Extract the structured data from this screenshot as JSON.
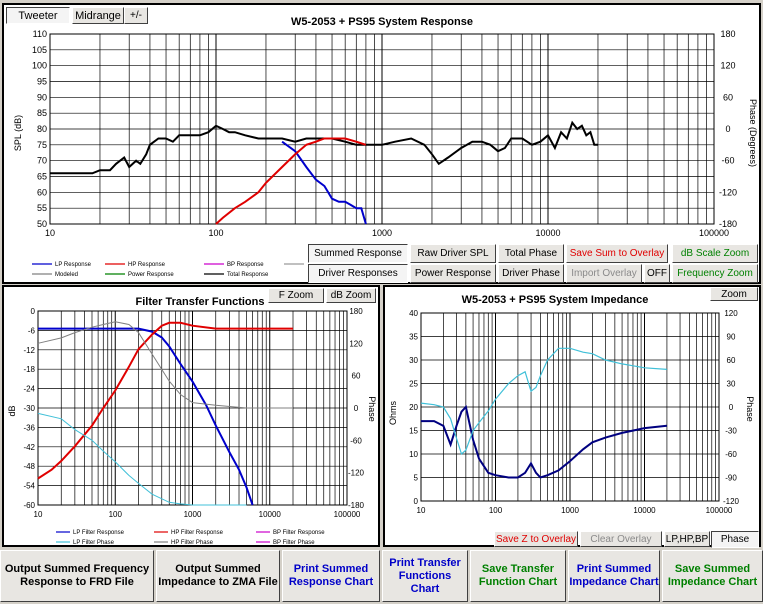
{
  "top_tabs": {
    "tweeter": "Tweeter",
    "midrange": "Midrange",
    "plusminus": "+/-"
  },
  "system_chart": {
    "title": "W5-2053 + PS95    System Response",
    "ylabel": "SPL (dB)",
    "y2label": "Phase (Degrees)",
    "y_ticks": [
      "110",
      "105",
      "100",
      "95",
      "90",
      "85",
      "80",
      "75",
      "70",
      "65",
      "60",
      "55",
      "50"
    ],
    "y2_ticks": [
      "180",
      "120",
      "60",
      "0",
      "-60",
      "-120",
      "-180"
    ],
    "x_ticks": [
      "10",
      "100",
      "1000",
      "10000",
      "100000"
    ],
    "legend": [
      "LP Response",
      "HP Response",
      "BP Response",
      "Modeled",
      "Power Response",
      "Total Response"
    ],
    "colors": {
      "lp": "#0000cc",
      "hp": "#e00000",
      "bp": "#cc00cc",
      "modeled": "#808080",
      "power": "#008000",
      "total": "#000000"
    }
  },
  "chart_buttons": {
    "summed": "Summed Response",
    "raw": "Raw Driver SPL",
    "total_phase": "Total Phase",
    "save_sum": "Save Sum to Overlay",
    "db_scale": "dB Scale Zoom",
    "driver_resp": "Driver Responses",
    "power_resp": "Power Response",
    "driver_phase": "Driver Phase",
    "import_overlay": "Import Overlay",
    "off": "OFF",
    "freq_zoom": "Frequency Zoom"
  },
  "filter_chart": {
    "title": "Filter Transfer Functions",
    "f_zoom": "F Zoom",
    "db_zoom": "dB Zoom",
    "ylabel": "dB",
    "y2label": "Phase",
    "y_ticks": [
      "0",
      "-6",
      "-12",
      "-18",
      "-24",
      "-30",
      "-36",
      "-42",
      "-48",
      "-54",
      "-60"
    ],
    "y2_ticks": [
      "180",
      "120",
      "60",
      "0",
      "-60",
      "-120",
      "-180"
    ],
    "x_ticks": [
      "10",
      "100",
      "1000",
      "10000",
      "100000"
    ],
    "legend": [
      "LP Filter Response",
      "HP Filter Response",
      "BP Filter Response",
      "LP Filter Phase",
      "HP Filter Phase",
      "BP Filter Phase"
    ]
  },
  "impedance_chart": {
    "title": "W5-2053 + PS95     System Impedance",
    "zoom": "Zoom",
    "ylabel": "Ohms",
    "y2label": "Phase",
    "y_ticks": [
      "40",
      "35",
      "30",
      "25",
      "20",
      "15",
      "10",
      "5",
      "0"
    ],
    "y2_ticks": [
      "120",
      "90",
      "60",
      "30",
      "0",
      "-30",
      "-60",
      "-90",
      "-120"
    ],
    "x_ticks": [
      "10",
      "100",
      "1000",
      "10000",
      "100000"
    ],
    "save_z": "Save Z to Overlay",
    "clear_overlay": "Clear Overlay",
    "lphpbp": "LP,HP,BP",
    "phase": "Phase"
  },
  "bottom_buttons": [
    {
      "label": "Output Summed Frequency Response to FRD File",
      "color": "black"
    },
    {
      "label": "Output Summed Impedance to ZMA File",
      "color": "black"
    },
    {
      "label": "Print Summed Response Chart",
      "color": "blue"
    },
    {
      "label": "Print Transfer Functions Chart",
      "color": "blue"
    },
    {
      "label": "Save Transfer Function Chart",
      "color": "green"
    },
    {
      "label": "Print Summed Impedance Chart",
      "color": "blue"
    },
    {
      "label": "Save Summed Impedance Chart",
      "color": "green"
    }
  ],
  "chart_data": [
    {
      "type": "line",
      "title": "W5-2053 + PS95    System Response",
      "xlabel": "",
      "ylabel": "SPL (dB)",
      "y2label": "Phase (Degrees)",
      "xscale": "log",
      "xlim": [
        10,
        100000
      ],
      "ylim": [
        50,
        110
      ],
      "y2lim": [
        -180,
        180
      ],
      "series": [
        {
          "name": "Total Response",
          "color": "#000000",
          "x": [
            10,
            18,
            20,
            23,
            25,
            28,
            30,
            33,
            35,
            38,
            40,
            45,
            50,
            55,
            60,
            70,
            80,
            90,
            100,
            110,
            120,
            130,
            150,
            180,
            200,
            250,
            300,
            350,
            400,
            450,
            500,
            600,
            700,
            800,
            1000,
            1200,
            1500,
            1800,
            2000,
            2200,
            2500,
            3000,
            3500,
            4000,
            4500,
            5000,
            5500,
            6000,
            7000,
            8000,
            9000,
            10000,
            11000,
            12000,
            13000,
            14000,
            15000,
            16000,
            17000,
            18000,
            19000,
            20000
          ],
          "y": [
            66,
            66,
            67,
            67,
            69,
            71,
            68,
            70,
            69,
            72,
            75,
            77,
            77,
            76,
            78,
            78,
            78,
            79,
            81,
            80,
            79,
            79,
            78,
            77,
            77,
            77,
            76,
            77,
            77,
            77,
            77,
            76,
            75,
            75,
            75,
            76,
            77,
            75,
            72,
            69,
            71,
            74,
            76,
            76,
            75,
            73,
            74,
            77,
            77,
            75,
            76,
            78,
            74,
            79,
            77,
            82,
            80,
            81,
            78,
            79,
            75,
            75
          ]
        },
        {
          "name": "LP Response",
          "color": "#0000cc",
          "x": [
            250,
            300,
            350,
            400,
            450,
            500,
            550,
            600,
            650,
            700,
            750,
            800
          ],
          "y": [
            76,
            73,
            68,
            64,
            62,
            58,
            57,
            57,
            56,
            55,
            55,
            50
          ]
        },
        {
          "name": "HP Response",
          "color": "#e00000",
          "x": [
            100,
            110,
            130,
            150,
            180,
            200,
            250,
            300,
            350,
            400,
            450,
            500,
            600,
            700,
            800
          ],
          "y": [
            50,
            52,
            55,
            57,
            60,
            63,
            68,
            72,
            75,
            76,
            77,
            77,
            77,
            76,
            75
          ]
        }
      ]
    },
    {
      "type": "line",
      "title": "Filter Transfer Functions",
      "xlabel": "",
      "ylabel": "dB",
      "y2label": "Phase",
      "xscale": "log",
      "xlim": [
        10,
        100000
      ],
      "ylim": [
        -60,
        6
      ],
      "y2lim": [
        -180,
        180
      ],
      "series": [
        {
          "name": "LP Filter Response",
          "color": "#0000cc",
          "x": [
            10,
            50,
            100,
            200,
            300,
            400,
            500,
            700,
            1000,
            1500,
            2000,
            3000,
            4000,
            5000,
            6000
          ],
          "y": [
            0,
            0,
            0,
            0,
            -1,
            -3,
            -6,
            -12,
            -18,
            -26,
            -33,
            -42,
            -48,
            -54,
            -60
          ]
        },
        {
          "name": "HP Filter Response",
          "color": "#e00000",
          "x": [
            10,
            15,
            20,
            30,
            50,
            70,
            100,
            150,
            200,
            300,
            400,
            500,
            700,
            1000,
            2000,
            5000,
            10000,
            20000
          ],
          "y": [
            -51,
            -48,
            -45,
            -40,
            -33,
            -27,
            -21,
            -13,
            -7,
            -2,
            1,
            2,
            2,
            1,
            0,
            0,
            0,
            0
          ]
        },
        {
          "name": "LP Filter Phase",
          "color": "#40c0d8",
          "x": [
            10,
            20,
            30,
            50,
            70,
            100,
            150,
            200,
            300,
            500,
            700,
            1000,
            2000,
            5000
          ],
          "y2": [
            -10,
            -20,
            -40,
            -60,
            -80,
            -100,
            -125,
            -140,
            -160,
            -175,
            -178,
            -180,
            -180,
            -180
          ]
        },
        {
          "name": "HP Filter Phase",
          "color": "#808080",
          "x": [
            10,
            20,
            30,
            50,
            70,
            100,
            150,
            200,
            300,
            500,
            700,
            1000,
            2000,
            5000,
            10000,
            20000
          ],
          "y2": [
            120,
            130,
            140,
            150,
            155,
            160,
            155,
            140,
            100,
            50,
            25,
            10,
            5,
            0,
            0,
            0
          ]
        }
      ]
    },
    {
      "type": "line",
      "title": "W5-2053 + PS95     System Impedance",
      "xlabel": "",
      "ylabel": "Ohms",
      "y2label": "Phase",
      "xscale": "log",
      "xlim": [
        10,
        100000
      ],
      "ylim": [
        0,
        40
      ],
      "y2lim": [
        -120,
        120
      ],
      "series": [
        {
          "name": "Impedance",
          "color": "#000080",
          "x": [
            10,
            15,
            20,
            25,
            30,
            35,
            40,
            50,
            60,
            80,
            100,
            150,
            200,
            250,
            300,
            350,
            400,
            500,
            700,
            1000,
            1500,
            2000,
            3000,
            5000,
            10000,
            20000
          ],
          "y": [
            17,
            17,
            16,
            12,
            16,
            19,
            20,
            13,
            9,
            6,
            5.5,
            5,
            5,
            6,
            8,
            6,
            5,
            5.5,
            6.5,
            8.5,
            11,
            12.5,
            13.5,
            14.5,
            15.5,
            16
          ]
        },
        {
          "name": "Phase",
          "color": "#40c0d8",
          "x": [
            10,
            15,
            20,
            25,
            30,
            35,
            40,
            50,
            60,
            80,
            100,
            150,
            200,
            250,
            300,
            350,
            400,
            500,
            700,
            1000,
            1500,
            2000,
            3000,
            5000,
            10000,
            20000
          ],
          "y2": [
            5,
            3,
            0,
            -15,
            -40,
            -60,
            -55,
            -30,
            -20,
            -5,
            10,
            30,
            40,
            45,
            20,
            25,
            40,
            60,
            75,
            75,
            70,
            68,
            60,
            55,
            50,
            48
          ]
        }
      ]
    }
  ]
}
